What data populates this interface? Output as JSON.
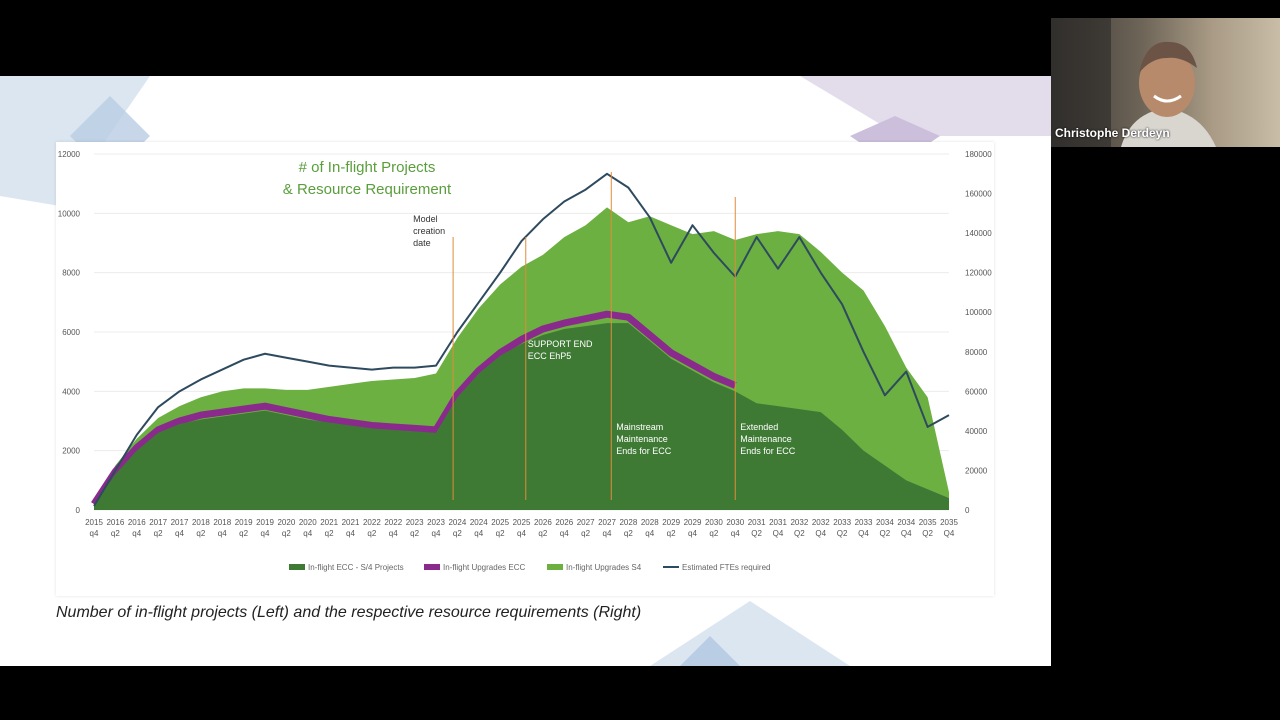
{
  "participant": {
    "name": "Christophe Derdeyn"
  },
  "caption": "Number of in-flight projects (Left) and the respective resource requirements (Right)",
  "colors": {
    "dark_green": "#3f7a35",
    "magenta": "#8a2a8c",
    "light_green": "#6cb041",
    "navy": "#2e4a5e",
    "orange": "#e08b3a"
  },
  "chart_data": {
    "type": "area",
    "title_line1": "# of In-flight Projects",
    "title_line2": "& Resource Requirement",
    "x_labels": [
      [
        "2015",
        "q4"
      ],
      [
        "2016",
        "q2"
      ],
      [
        "2016",
        "q4"
      ],
      [
        "2017",
        "q2"
      ],
      [
        "2017",
        "q4"
      ],
      [
        "2018",
        "q2"
      ],
      [
        "2018",
        "q4"
      ],
      [
        "2019",
        "q2"
      ],
      [
        "2019",
        "q4"
      ],
      [
        "2020",
        "q2"
      ],
      [
        "2020",
        "q4"
      ],
      [
        "2021",
        "q2"
      ],
      [
        "2021",
        "q4"
      ],
      [
        "2022",
        "q2"
      ],
      [
        "2022",
        "q4"
      ],
      [
        "2023",
        "q2"
      ],
      [
        "2023",
        "q4"
      ],
      [
        "2024",
        "q2"
      ],
      [
        "2024",
        "q4"
      ],
      [
        "2025",
        "q2"
      ],
      [
        "2025",
        "q4"
      ],
      [
        "2026",
        "q2"
      ],
      [
        "2026",
        "q4"
      ],
      [
        "2027",
        "q2"
      ],
      [
        "2027",
        "q4"
      ],
      [
        "2028",
        "q2"
      ],
      [
        "2028",
        "q4"
      ],
      [
        "2029",
        "q2"
      ],
      [
        "2029",
        "q4"
      ],
      [
        "2030",
        "q2"
      ],
      [
        "2030",
        "q4"
      ],
      [
        "2031",
        "Q2"
      ],
      [
        "2031",
        "Q4"
      ],
      [
        "2032",
        "Q2"
      ],
      [
        "2032",
        "Q4"
      ],
      [
        "2033",
        "Q2"
      ],
      [
        "2033",
        "Q4"
      ],
      [
        "2034",
        "Q2"
      ],
      [
        "2034",
        "Q4"
      ],
      [
        "2035",
        "Q2"
      ],
      [
        "2035",
        "Q4"
      ]
    ],
    "y_left_ticks": [
      "0",
      "2000",
      "4000",
      "6000",
      "8000",
      "10000",
      "12000"
    ],
    "y_right_ticks": [
      "0",
      "20000",
      "40000",
      "60000",
      "80000",
      "100000",
      "120000",
      "140000",
      "160000",
      "180000"
    ],
    "ylim_left": [
      0,
      12000
    ],
    "ylim_right": [
      0,
      180000
    ],
    "series": [
      {
        "name": "In-flight ECC - S/4 Projects",
        "color": "#3f7a35",
        "axis": "left",
        "values": [
          200,
          1200,
          2000,
          2600,
          2900,
          3050,
          3150,
          3250,
          3350,
          3200,
          3050,
          2950,
          2850,
          2750,
          2700,
          2650,
          2600,
          3800,
          4600,
          5200,
          5600,
          5900,
          6100,
          6200,
          6300,
          6300,
          5700,
          5100,
          4700,
          4300,
          4000,
          3600,
          3500,
          3400,
          3300,
          2700,
          2000,
          1500,
          1000,
          700,
          400
        ]
      },
      {
        "name": "In-flight Upgrades ECC",
        "color": "#8a2a8c",
        "axis": "left",
        "values": [
          200,
          1300,
          2100,
          2700,
          3000,
          3200,
          3300,
          3400,
          3500,
          3350,
          3200,
          3050,
          2950,
          2850,
          2800,
          2750,
          2700,
          3900,
          4700,
          5300,
          5750,
          6100,
          6300,
          6450,
          6600,
          6500,
          5900,
          5300,
          4900,
          4500,
          4200,
          null,
          null,
          null,
          null,
          null,
          null,
          null,
          null,
          null,
          null
        ]
      },
      {
        "name": "In-flight Upgrades S4",
        "color": "#6cb041",
        "axis": "left",
        "values": [
          300,
          1500,
          2400,
          3100,
          3500,
          3800,
          4000,
          4100,
          4100,
          4050,
          4050,
          4150,
          4250,
          4350,
          4400,
          4450,
          4600,
          5800,
          6800,
          7600,
          8200,
          8600,
          9200,
          9600,
          10200,
          9700,
          9900,
          9600,
          9300,
          9400,
          9100,
          9300,
          9400,
          9300,
          8700,
          8000,
          7400,
          6200,
          4800,
          3800,
          600
        ]
      },
      {
        "name": "Estimated FTEs required",
        "color": "#2e4a5e",
        "axis": "right",
        "values": [
          2000,
          20000,
          38000,
          52000,
          60000,
          66000,
          71000,
          76000,
          79000,
          77000,
          75000,
          73000,
          72000,
          71000,
          72000,
          72000,
          73000,
          90000,
          105000,
          120000,
          136000,
          147000,
          156000,
          162000,
          170000,
          163000,
          148000,
          125000,
          144000,
          130000,
          118000,
          138000,
          122000,
          138000,
          120000,
          104000,
          80000,
          58000,
          70000,
          42000,
          48000
        ]
      }
    ],
    "annotations": [
      {
        "text": [
          "Model",
          "creation",
          "date"
        ],
        "x_index": 16.8
      },
      {
        "text": [
          "SUPPORT END",
          "ECC EhP5"
        ],
        "x_index": 20.2
      },
      {
        "text": [
          "Mainstream",
          "Maintenance",
          "Ends for ECC"
        ],
        "x_index": 24.2
      },
      {
        "text": [
          "Extended",
          "Maintenance",
          "Ends for ECC"
        ],
        "x_index": 30.0
      }
    ],
    "legend_position": "bottom"
  }
}
